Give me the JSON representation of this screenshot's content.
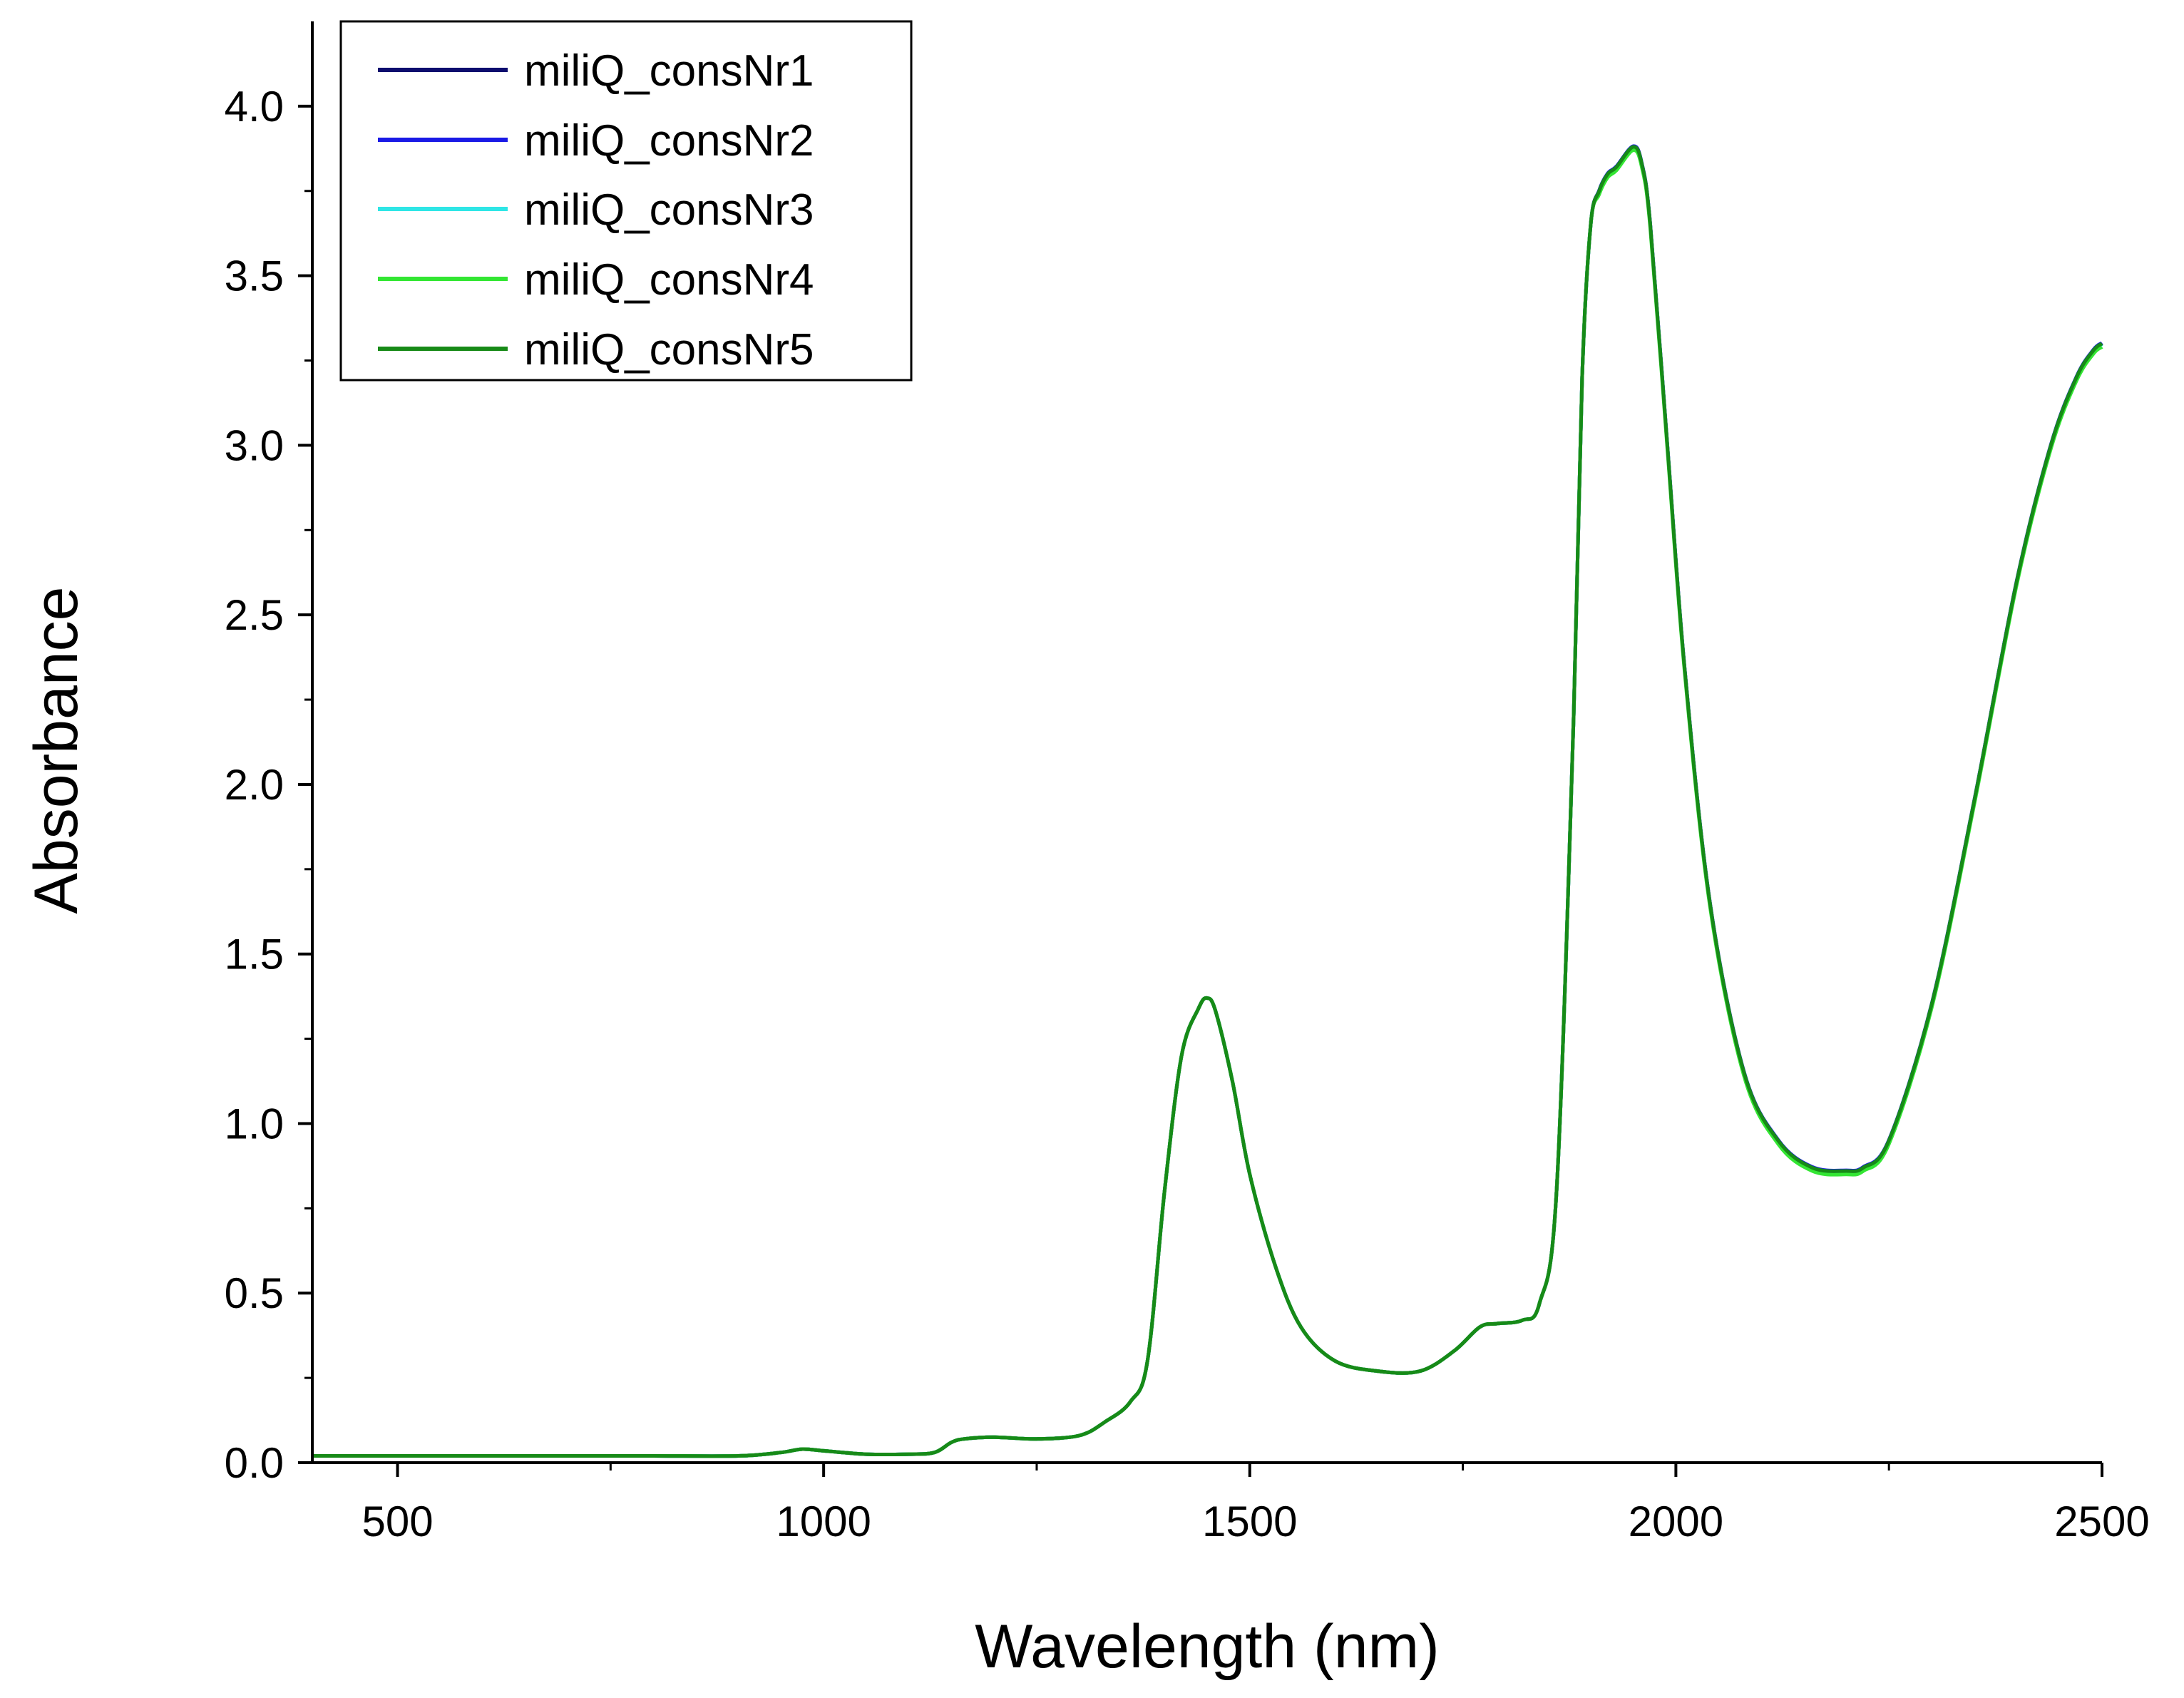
{
  "chart_data": {
    "type": "line",
    "title": "",
    "xlabel": "Wavelength (nm)",
    "ylabel": "Absorbance",
    "xlim": [
      400,
      2500
    ],
    "ylim": [
      0,
      4.25
    ],
    "xticks": [
      500,
      1000,
      1500,
      2000,
      2500
    ],
    "xtick_labels": [
      "500",
      "1000",
      "1500",
      "2000",
      "2500"
    ],
    "yticks": [
      0,
      0.5,
      1,
      1.5,
      2,
      2.5,
      3,
      3.5,
      4
    ],
    "ytick_labels": [
      "0.0",
      "0.5",
      "1.0",
      "1.5",
      "2.0",
      "2.5",
      "3.0",
      "3.5",
      "4.0"
    ],
    "grid": false,
    "legend_position": "top-left",
    "series": [
      {
        "name": "miliQ_consNr1",
        "color": "#0d0d6e",
        "offset": 0.0
      },
      {
        "name": "miliQ_consNr2",
        "color": "#1a1ae6",
        "offset": 0.002
      },
      {
        "name": "miliQ_consNr3",
        "color": "#2ee6e6",
        "offset": -0.002
      },
      {
        "name": "miliQ_consNr4",
        "color": "#33e633",
        "offset": -0.01
      },
      {
        "name": "miliQ_consNr5",
        "color": "#178a17",
        "offset": 0.0
      }
    ],
    "x": [
      400,
      500,
      600,
      700,
      800,
      900,
      950,
      975,
      1000,
      1050,
      1100,
      1130,
      1150,
      1165,
      1200,
      1250,
      1300,
      1330,
      1360,
      1380,
      1400,
      1420,
      1440,
      1450,
      1460,
      1480,
      1500,
      1530,
      1560,
      1600,
      1650,
      1700,
      1740,
      1770,
      1790,
      1820,
      1840,
      1860,
      1880,
      1890,
      1900,
      1910,
      1920,
      1930,
      1950,
      1960,
      1970,
      1990,
      2010,
      2040,
      2080,
      2120,
      2160,
      2200,
      2220,
      2250,
      2300,
      2350,
      2400,
      2440,
      2470,
      2490,
      2500
    ],
    "values": [
      0.02,
      0.02,
      0.02,
      0.02,
      0.02,
      0.02,
      0.03,
      0.04,
      0.035,
      0.025,
      0.025,
      0.03,
      0.06,
      0.07,
      0.075,
      0.07,
      0.08,
      0.12,
      0.18,
      0.3,
      0.8,
      1.2,
      1.34,
      1.37,
      1.33,
      1.12,
      0.85,
      0.58,
      0.4,
      0.3,
      0.27,
      0.27,
      0.33,
      0.4,
      0.41,
      0.42,
      0.47,
      0.8,
      2.2,
      3.2,
      3.65,
      3.75,
      3.8,
      3.82,
      3.88,
      3.83,
      3.65,
      3.0,
      2.35,
      1.65,
      1.15,
      0.95,
      0.87,
      0.86,
      0.87,
      0.95,
      1.35,
      1.95,
      2.6,
      3.0,
      3.2,
      3.28,
      3.3
    ]
  },
  "legend": {
    "items": [
      "miliQ_consNr1",
      "miliQ_consNr2",
      "miliQ_consNr3",
      "miliQ_consNr4",
      "miliQ_consNr5"
    ]
  }
}
